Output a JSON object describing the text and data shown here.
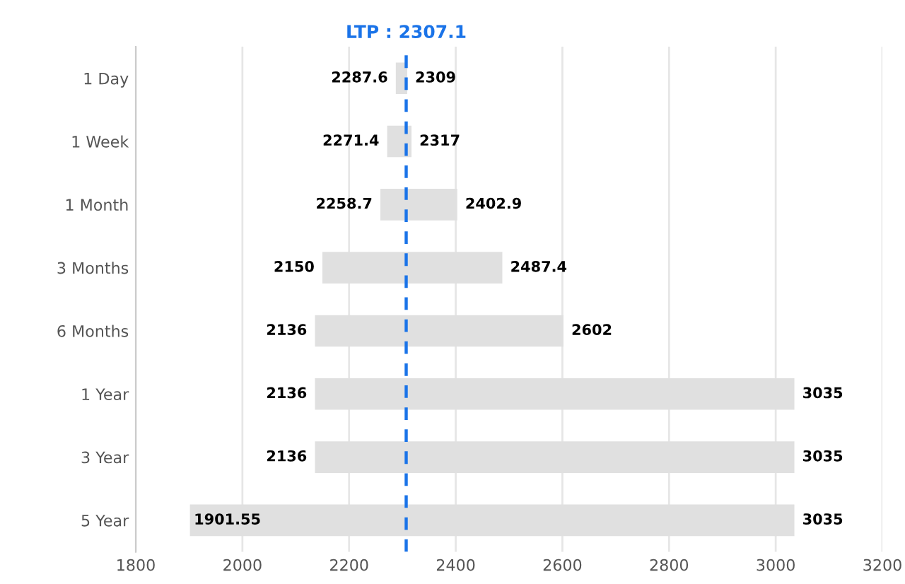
{
  "chart_data": {
    "type": "bar",
    "orientation": "horizontal",
    "categories": [
      "1 Day",
      "1 Week",
      "1 Month",
      "3 Months",
      "6 Months",
      "1 Year",
      "3 Year",
      "5 Year"
    ],
    "base": [
      2287.6,
      2271.4,
      2258.7,
      2150,
      2136,
      2136,
      2136,
      1901.55
    ],
    "values": [
      21.4,
      45.6,
      144.2,
      337.4,
      466,
      899,
      899,
      1133.45
    ],
    "color": "#e0e0e0",
    "xlim": [
      1800,
      3200
    ],
    "xticks": [
      1800,
      2000,
      2200,
      2400,
      2600,
      2800,
      3000,
      3200
    ],
    "grid": "x",
    "ref_lines": [
      {
        "axis": "x",
        "value": 2307.1,
        "label": "LTP : 2307.1",
        "color": "#1a73e8",
        "line_style": "dashed"
      }
    ],
    "annotations": [
      {
        "text": "2287.6",
        "x": 2287.6,
        "y": "1 Day"
      },
      {
        "text": "2309",
        "x": 2309,
        "y": "1 Day"
      },
      {
        "text": "2271.4",
        "x": 2271.4,
        "y": "1 Week"
      },
      {
        "text": "2317",
        "x": 2317,
        "y": "1 Week"
      },
      {
        "text": "2258.7",
        "x": 2258.7,
        "y": "1 Month"
      },
      {
        "text": "2402.9",
        "x": 2402.9,
        "y": "1 Month"
      },
      {
        "text": "2150",
        "x": 2150,
        "y": "3 Months"
      },
      {
        "text": "2487.4",
        "x": 2487.4,
        "y": "3 Months"
      },
      {
        "text": "2136",
        "x": 2136,
        "y": "6 Months"
      },
      {
        "text": "2602",
        "x": 2602,
        "y": "6 Months"
      },
      {
        "text": "2136",
        "x": 2136,
        "y": "1 Year"
      },
      {
        "text": "3035",
        "x": 3035,
        "y": "1 Year"
      },
      {
        "text": "2136",
        "x": 2136,
        "y": "3 Year"
      },
      {
        "text": "3035",
        "x": 3035,
        "y": "3 Year"
      },
      {
        "text": "1901.55",
        "x": 1901.55,
        "y": "5 Year"
      },
      {
        "text": "3035",
        "x": 3035,
        "y": "5 Year"
      }
    ]
  }
}
